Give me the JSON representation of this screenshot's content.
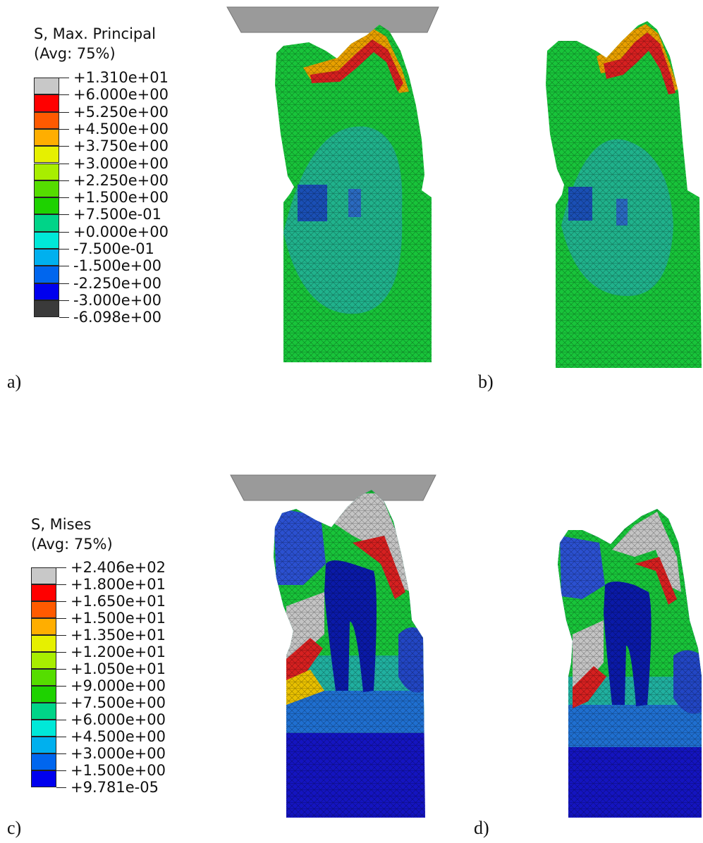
{
  "panel_labels": {
    "a": "a)",
    "b": "b)",
    "c": "c)",
    "d": "d)"
  },
  "legend_top": {
    "title_line1": "S, Max. Principal",
    "title_line2": "(Avg: 75%)",
    "values": [
      "+1.310e+01",
      "+6.000e+00",
      "+5.250e+00",
      "+4.500e+00",
      "+3.750e+00",
      "+3.000e+00",
      "+2.250e+00",
      "+1.500e+00",
      "+7.500e-01",
      "+0.000e+00",
      "-7.500e-01",
      "-1.500e+00",
      "-2.250e+00",
      "-3.000e+00",
      "-6.098e+00"
    ],
    "colors": [
      "#c8c8c8",
      "#ff0000",
      "#ff5a00",
      "#ffae00",
      "#e6f000",
      "#a8ee00",
      "#55dd00",
      "#1ed200",
      "#00d488",
      "#00e8d8",
      "#00b0ee",
      "#0066ee",
      "#0000ee",
      "#3a3a3a"
    ]
  },
  "legend_bottom": {
    "title_line1": "S, Mises",
    "title_line2": "(Avg: 75%)",
    "values": [
      "+2.406e+02",
      "+1.800e+01",
      "+1.650e+01",
      "+1.500e+01",
      "+1.350e+01",
      "+1.200e+01",
      "+1.050e+01",
      "+9.000e+00",
      "+7.500e+00",
      "+6.000e+00",
      "+4.500e+00",
      "+3.000e+00",
      "+1.500e+00",
      "+9.781e-05"
    ],
    "colors": [
      "#c8c8c8",
      "#ff0000",
      "#ff5a00",
      "#ffae00",
      "#e6f000",
      "#a8ee00",
      "#55dd00",
      "#1ed200",
      "#00d488",
      "#00e8d8",
      "#00b0ee",
      "#0066ee",
      "#0000ee"
    ]
  }
}
